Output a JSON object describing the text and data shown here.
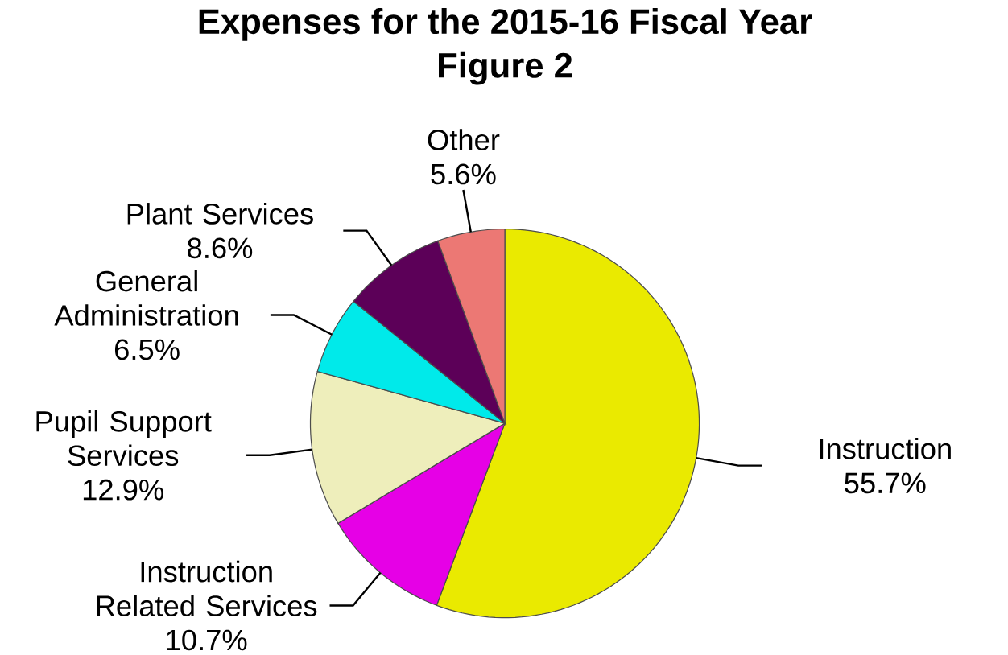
{
  "chart_data": {
    "type": "pie",
    "title": "Expenses for the 2015-16 Fiscal Year",
    "subtitle": "Figure 2",
    "categories": [
      "Instruction",
      "Instruction Related Services",
      "Pupil Support Services",
      "General Administration",
      "Plant Services",
      "Other"
    ],
    "values": [
      55.7,
      10.7,
      12.9,
      6.5,
      8.6,
      5.6
    ],
    "colors": [
      "#eaea00",
      "#e600e6",
      "#eeeebb",
      "#00eaea",
      "#5c0058",
      "#ec7874"
    ],
    "value_labels": [
      "55.7%",
      "10.7%",
      "12.9%",
      "6.5%",
      "8.6%",
      "5.6%"
    ]
  }
}
